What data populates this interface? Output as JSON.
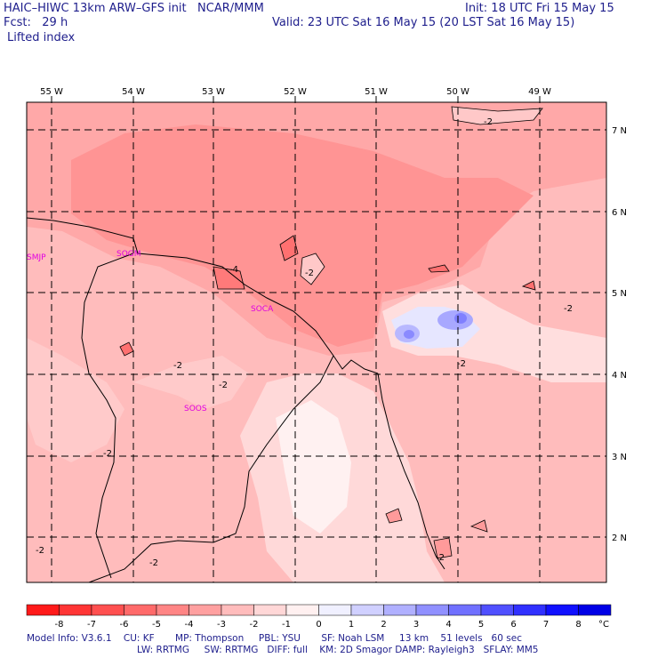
{
  "header": {
    "model_title": "HAIC–HIWC 13km ARW–GFS init   NCAR/MMM",
    "init": "Init: 18 UTC Fri 15 May 15",
    "fcst": "Fcst:   29 h",
    "valid": "Valid: 23 UTC Sat 16 May 15 (20 LST Sat 16 May 15)",
    "field": "Lifted index"
  },
  "axes": {
    "longitudes": [
      "55 W",
      "54 W",
      "53 W",
      "52 W",
      "51 W",
      "50 W",
      "49 W"
    ],
    "latitudes": [
      "7 N",
      "6 N",
      "5 N",
      "4 N",
      "3 N",
      "2 N"
    ]
  },
  "stations": [
    "SMJP",
    "SOGM",
    "SOCA",
    "SOOS"
  ],
  "contour_label": "-2",
  "contour_label_4": "-4",
  "colorbar": {
    "unit": "°C",
    "ticks": [
      "-8",
      "-7",
      "-6",
      "-5",
      "-4",
      "-3",
      "-2",
      "-1",
      "0",
      "1",
      "2",
      "3",
      "4",
      "5",
      "6",
      "7",
      "8"
    ],
    "colors": [
      "#ff1a1a",
      "#ff3535",
      "#ff5050",
      "#ff6a6a",
      "#ff8585",
      "#ffa0a0",
      "#ffbcbc",
      "#ffd7d7",
      "#fff0f0",
      "#f0f0ff",
      "#d0d0ff",
      "#b0b0ff",
      "#9090ff",
      "#7070ff",
      "#5050ff",
      "#3030ff",
      "#1010ff",
      "#0000e6"
    ]
  },
  "model_info": {
    "line1": "Model Info: V3.6.1    CU: KF       MP: Thompson     PBL: YSU       SF: Noah LSM     13 km    51 levels   60 sec",
    "line2": "LW: RRTMG     SW: RRTMG   DIFF: full    KM: 2D Smagor DAMP: Rayleigh3   SFLAY: MM5"
  }
}
